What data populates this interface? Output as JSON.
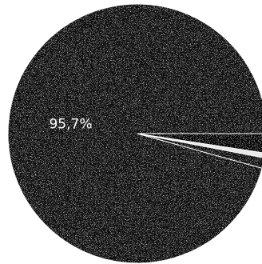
{
  "chart_data": {
    "type": "pie",
    "start_angle_deg": 0,
    "direction": "counterclockwise",
    "slices": [
      {
        "value": 95.7,
        "label": "95,7%",
        "color": "#0d0d0d",
        "show_label": true
      },
      {
        "value": 1.3,
        "label": "",
        "color": "#080808",
        "show_label": false
      },
      {
        "value": 0.6,
        "label": "",
        "color": "#e6e6e6",
        "show_label": false
      },
      {
        "value": 2.4,
        "label": "",
        "color": "#050505",
        "show_label": false
      }
    ],
    "edge_color": "#ffffff",
    "texture": "speckled"
  }
}
